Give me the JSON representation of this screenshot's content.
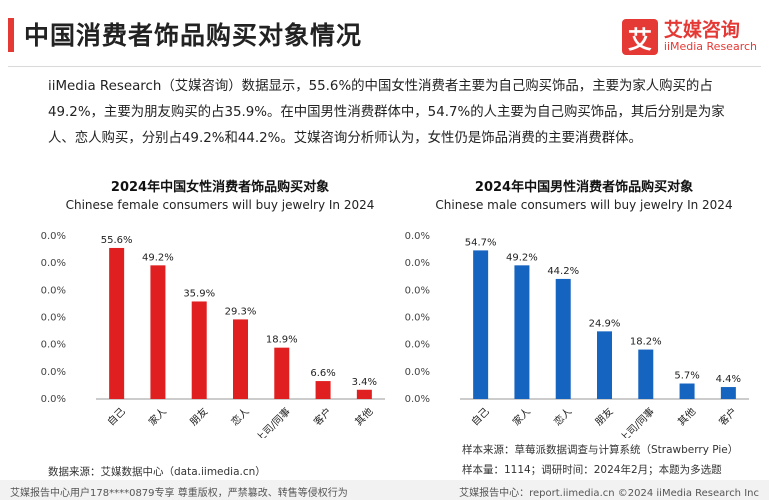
{
  "header": {
    "title": "中国消费者饰品购买对象情况",
    "logo_mark": "艾",
    "logo_cn": "艾媒咨询",
    "logo_en": "iiMedia Research"
  },
  "intro": "iiMedia Research（艾媒咨询）数据显示，55.6%的中国女性消费者主要为自己购买饰品，主要为家人购买的占49.2%，主要为朋友购买的占35.9%。在中国男性消费群体中，54.7%的人主要为自己购买饰品，其后分别是为家人、恋人购买，分别占49.2%和44.2%。艾媒咨询分析师认为，女性仍是饰品消费的主要消费群体。",
  "colors": {
    "female": "#e02020",
    "male": "#1565c0",
    "accent": "#e53935"
  },
  "chart_data": [
    {
      "type": "bar",
      "title": "2024年中国女性消费者饰品购买对象",
      "subtitle": "Chinese female consumers will buy jewelry In 2024",
      "categories": [
        "自己",
        "家人",
        "朋友",
        "恋人",
        "上司/同事",
        "客户",
        "其他"
      ],
      "values": [
        55.6,
        49.2,
        35.9,
        29.3,
        18.9,
        6.6,
        3.4
      ],
      "value_labels": [
        "55.6%",
        "49.2%",
        "35.9%",
        "29.3%",
        "18.9%",
        "6.6%",
        "3.4%"
      ],
      "yticks": [
        "0.0%",
        "10.0%",
        "20.0%",
        "30.0%",
        "40.0%",
        "50.0%",
        "60.0%"
      ],
      "ylim": [
        0,
        60
      ],
      "grid": false,
      "color": "#e02020"
    },
    {
      "type": "bar",
      "title": "2024年中国男性消费者饰品购买对象",
      "subtitle": "Chinese male consumers will buy jewelry In 2024",
      "categories": [
        "自己",
        "家人",
        "恋人",
        "朋友",
        "上司/同事",
        "其他",
        "客户"
      ],
      "values": [
        54.7,
        49.2,
        44.2,
        24.9,
        18.2,
        5.7,
        4.4
      ],
      "value_labels": [
        "54.7%",
        "49.2%",
        "44.2%",
        "24.9%",
        "18.2%",
        "5.7%",
        "4.4%"
      ],
      "yticks": [
        "0.0%",
        "10.0%",
        "20.0%",
        "30.0%",
        "40.0%",
        "50.0%",
        "60.0%"
      ],
      "ylim": [
        0,
        60
      ],
      "grid": false,
      "color": "#1565c0"
    }
  ],
  "notes": {
    "sample_source": "样本来源：草莓派数据调查与计算系统（Strawberry Pie）",
    "sample_info": "样本量：1114；调研时间：2024年2月；本题为多选题"
  },
  "source": "数据来源：艾媒数据中心（data.iimedia.cn）",
  "footer": {
    "left": "艾媒报告中心用户178****0879专享 尊重版权，严禁篡改、转售等侵权行为",
    "right": "艾媒报告中心：report.iimedia.cn ©2024 iiMedia Research Inc"
  }
}
